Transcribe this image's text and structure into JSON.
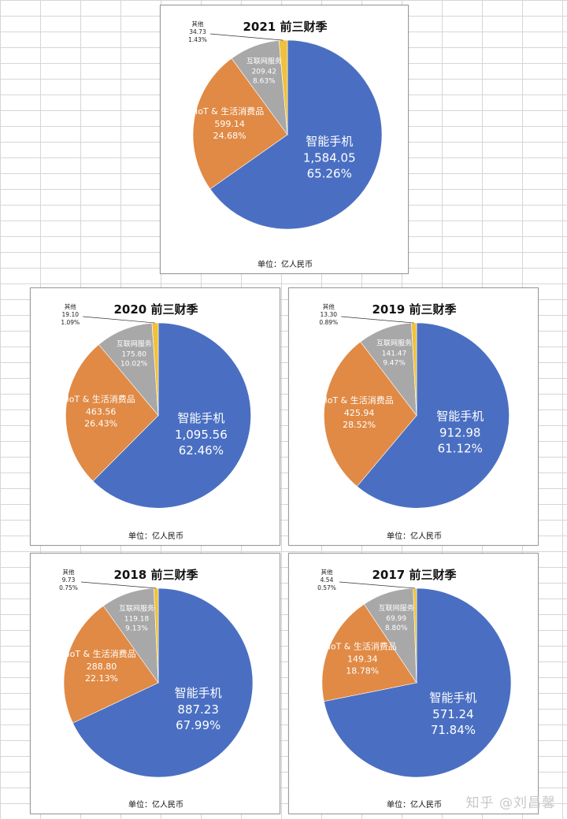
{
  "colors": {
    "smartphone": "#4a6fc2",
    "iot": "#e08a45",
    "internet": "#a8a8a8",
    "other": "#f0c23a",
    "label_on_slice": "#ffffff",
    "label_outside": "#222222"
  },
  "watermark": "知乎 @刘昌馨",
  "chart_data": [
    {
      "type": "pie",
      "title": "2021 前三财季",
      "unit": "单位：亿人民币",
      "slices": [
        {
          "name": "智能手机",
          "value": "1,584.05",
          "percent": "65.26%",
          "amount": 1584.05,
          "pct": 65.26
        },
        {
          "name": "IoT & 生活消费品",
          "value": "599.14",
          "percent": "24.68%",
          "amount": 599.14,
          "pct": 24.68
        },
        {
          "name": "互联网服务",
          "value": "209.42",
          "percent": "8.63%",
          "amount": 209.42,
          "pct": 8.63
        },
        {
          "name": "其他",
          "value": "34.73",
          "percent": "1.43%",
          "amount": 34.73,
          "pct": 1.43
        }
      ]
    },
    {
      "type": "pie",
      "title": "2020 前三财季",
      "unit": "单位：亿人民币",
      "slices": [
        {
          "name": "智能手机",
          "value": "1,095.56",
          "percent": "62.46%",
          "amount": 1095.56,
          "pct": 62.46
        },
        {
          "name": "IoT & 生活消费品",
          "value": "463.56",
          "percent": "26.43%",
          "amount": 463.56,
          "pct": 26.43
        },
        {
          "name": "互联网服务",
          "value": "175.80",
          "percent": "10.02%",
          "amount": 175.8,
          "pct": 10.02
        },
        {
          "name": "其他",
          "value": "19.10",
          "percent": "1.09%",
          "amount": 19.1,
          "pct": 1.09
        }
      ]
    },
    {
      "type": "pie",
      "title": "2019 前三财季",
      "unit": "单位：亿人民币",
      "slices": [
        {
          "name": "智能手机",
          "value": "912.98",
          "percent": "61.12%",
          "amount": 912.98,
          "pct": 61.12
        },
        {
          "name": "IoT & 生活消费品",
          "value": "425.94",
          "percent": "28.52%",
          "amount": 425.94,
          "pct": 28.52
        },
        {
          "name": "互联网服务",
          "value": "141.47",
          "percent": "9.47%",
          "amount": 141.47,
          "pct": 9.47
        },
        {
          "name": "其他",
          "value": "13.30",
          "percent": "0.89%",
          "amount": 13.3,
          "pct": 0.89
        }
      ]
    },
    {
      "type": "pie",
      "title": "2018 前三财季",
      "unit": "单位：亿人民币",
      "slices": [
        {
          "name": "智能手机",
          "value": "887.23",
          "percent": "67.99%",
          "amount": 887.23,
          "pct": 67.99
        },
        {
          "name": "IoT & 生活消费品",
          "value": "288.80",
          "percent": "22.13%",
          "amount": 288.8,
          "pct": 22.13
        },
        {
          "name": "互联网服务",
          "value": "119.18",
          "percent": "9.13%",
          "amount": 119.18,
          "pct": 9.13
        },
        {
          "name": "其他",
          "value": "9.73",
          "percent": "0.75%",
          "amount": 9.73,
          "pct": 0.75
        }
      ]
    },
    {
      "type": "pie",
      "title": "2017 前三财季",
      "unit": "单位：亿人民币",
      "slices": [
        {
          "name": "智能手机",
          "value": "571.24",
          "percent": "71.84%",
          "amount": 571.24,
          "pct": 71.84
        },
        {
          "name": "IoT & 生活消费品",
          "value": "149.34",
          "percent": "18.78%",
          "amount": 149.34,
          "pct": 18.78
        },
        {
          "name": "互联网服务",
          "value": "69.99",
          "percent": "8.80%",
          "amount": 69.99,
          "pct": 8.8
        },
        {
          "name": "其他",
          "value": "4.54",
          "percent": "0.57%",
          "amount": 4.54,
          "pct": 0.57
        }
      ]
    }
  ]
}
